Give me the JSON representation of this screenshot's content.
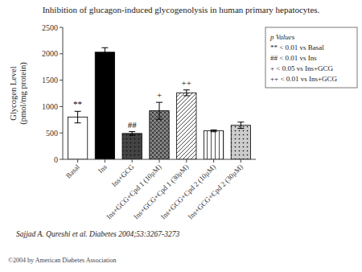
{
  "chart_data": {
    "type": "bar",
    "title": "Inhibition of glucagon-induced glycogenolysis in human primary hepatocytes.",
    "ylabel": "Glycogen Level\n(pmol/mg protein)",
    "categories": [
      "Basal",
      "Ins",
      "Ins+GCG",
      "Ins+GCG+Cpd 1 (10μM)",
      "Ins+GCG+Cpd 1 (30μM)",
      "Ins+GCG+Cpd 2 (10μM)",
      "Ins+GCG+Cpd 2 (30μM)"
    ],
    "values": [
      800,
      2030,
      490,
      920,
      1260,
      540,
      645
    ],
    "errors": [
      110,
      85,
      35,
      160,
      55,
      18,
      60
    ],
    "colors": [
      "white",
      "black",
      "#444444",
      "#888888",
      "white",
      "white",
      "#cccccc"
    ],
    "ylim": [
      0,
      2500
    ],
    "yticks": [
      0,
      500,
      1000,
      1500,
      2000,
      2500
    ],
    "grid": false,
    "annotations": [
      {
        "category": "Basal",
        "text": "**"
      },
      {
        "category": "Ins+GCG",
        "text": "##"
      },
      {
        "category": "Ins+GCG+Cpd 1 (10μM)",
        "text": "+"
      },
      {
        "category": "Ins+GCG+Cpd 1 (30μM)",
        "text": "++"
      }
    ],
    "text_box": [
      "p Values",
      "** < 0.01 vs Basal",
      "## < 0.01 vs Ins",
      "+ < 0.05 vs Ins+GCG",
      "++ < 0.01 vs Ins+GCG"
    ],
    "citation": "Sajjad A. Qureshi et al. Diabetes 2004;53:3267-3273",
    "copyright": "©2004 by American Diabetes Association"
  }
}
